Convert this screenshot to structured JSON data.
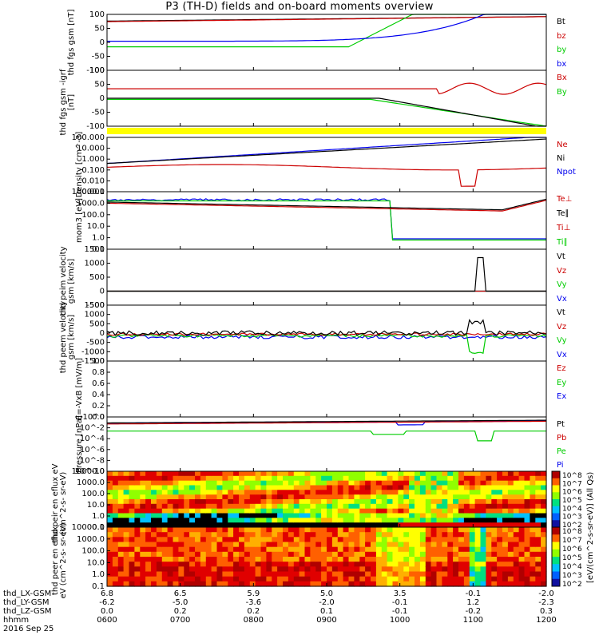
{
  "title": "P3 (TH-D) fields and on-board moments overview",
  "colors": {
    "black": "#000000",
    "red": "#cc0000",
    "green": "#00cc00",
    "blue": "#0000ee",
    "yellow": "#ffff00"
  },
  "chart_data": [
    {
      "type": "line",
      "panel": "fgs_gsm",
      "ylabel": [
        "thd",
        "fgs",
        "gsm",
        "[nT]"
      ],
      "ylim": [
        -100,
        100
      ],
      "yticks": [
        "100",
        "50",
        "0",
        "-50",
        "-100"
      ],
      "series": [
        {
          "name": "Bt",
          "color": "black"
        },
        {
          "name": "bz",
          "color": "red"
        },
        {
          "name": "by",
          "color": "green"
        },
        {
          "name": "bx",
          "color": "blue"
        }
      ]
    },
    {
      "type": "line",
      "panel": "fgs_gsm_dipole",
      "ylabel": [
        "thd",
        "fgs",
        "gsm",
        "-igrf",
        "[nT]"
      ],
      "ylim": [
        -125,
        125
      ],
      "yticks": [
        "100",
        "50",
        "0",
        "-50",
        "-100"
      ],
      "series": [
        {
          "name": "Bx",
          "color": "red"
        },
        {
          "name": "By",
          "color": "green"
        }
      ]
    },
    {
      "type": "line",
      "panel": "density",
      "ylabel": [
        "Density",
        "[cm^-3]"
      ],
      "ylim": [
        0.001,
        1000
      ],
      "log": true,
      "yticks": [
        "100.000",
        "10.000",
        "1.000",
        "0.100",
        "0.010",
        "0.001"
      ],
      "series": [
        {
          "name": "Ne",
          "color": "red"
        },
        {
          "name": "Ni",
          "color": "black"
        },
        {
          "name": "Npot",
          "color": "blue"
        }
      ]
    },
    {
      "type": "line",
      "panel": "temperature",
      "ylabel": [
        "mom3",
        "[eV]"
      ],
      "ylim": [
        0.1,
        10000
      ],
      "log": true,
      "yticks": [
        "10000.0",
        "1000.0",
        "100.0",
        "10.0",
        "1.0",
        "0.1"
      ],
      "series": [
        {
          "name": "Te⊥",
          "color": "red"
        },
        {
          "name": "Te∥",
          "color": "black"
        },
        {
          "name": "Ti⊥",
          "color": "red"
        },
        {
          "name": "Ti∥",
          "color": "green"
        }
      ]
    },
    {
      "type": "line",
      "panel": "peim_velocity",
      "ylabel": [
        "thd",
        "peim",
        "velocity",
        "gsm",
        "[km/s]"
      ],
      "ylim": [
        -500,
        1500
      ],
      "yticks": [
        "1500",
        "1000",
        "500",
        "0",
        "-500"
      ],
      "series": [
        {
          "name": "Vt",
          "color": "black"
        },
        {
          "name": "Vz",
          "color": "red"
        },
        {
          "name": "Vy",
          "color": "green"
        },
        {
          "name": "Vx",
          "color": "blue"
        }
      ]
    },
    {
      "type": "line",
      "panel": "peem_velocity",
      "ylabel": [
        "thd",
        "peem",
        "velocity",
        "gsm",
        "[km/s]"
      ],
      "ylim": [
        -1500,
        1500
      ],
      "yticks": [
        "1500",
        "1000",
        "500",
        "0",
        "-500",
        "-1000",
        "-1500"
      ],
      "series": [
        {
          "name": "Vt",
          "color": "black"
        },
        {
          "name": "Vz",
          "color": "red"
        },
        {
          "name": "Vy",
          "color": "green"
        },
        {
          "name": "Vx",
          "color": "blue"
        }
      ]
    },
    {
      "type": "line",
      "panel": "e_vxb",
      "ylabel": [
        "E=-VxB",
        "[mV/m]"
      ],
      "ylim": [
        0,
        1
      ],
      "yticks": [
        "1.0",
        "0.8",
        "0.6",
        "0.4",
        "0.2",
        "0.0"
      ],
      "series": [
        {
          "name": "Ez",
          "color": "red"
        },
        {
          "name": "Ey",
          "color": "green"
        },
        {
          "name": "Ex",
          "color": "blue"
        }
      ]
    },
    {
      "type": "line",
      "panel": "pressure",
      "ylabel": [
        "Pressure",
        "[nPa]"
      ],
      "ylim": [
        1e-10,
        10
      ],
      "log": true,
      "yticks": [
        "10^0",
        "10^-2",
        "10^-4",
        "10^-6",
        "10^-8",
        "10^-10"
      ],
      "series": [
        {
          "name": "Pt",
          "color": "black"
        },
        {
          "name": "Pb",
          "color": "red"
        },
        {
          "name": "Pe",
          "color": "green"
        },
        {
          "name": "Pi",
          "color": "blue"
        }
      ]
    },
    {
      "type": "heatmap",
      "panel": "peir_spectrogram",
      "ylabel": [
        "thd",
        "peir",
        "en",
        "eflux",
        "eV",
        "(cm^2-s-",
        "sr-eV)"
      ],
      "log": true,
      "yticks": [
        "10000.0",
        "1000.0",
        "100.0",
        "10.0",
        "1.0",
        "0.1"
      ]
    },
    {
      "type": "heatmap",
      "panel": "peer_spectrogram",
      "ylabel": [
        "thd",
        "peer",
        "en",
        "eflux",
        "eV",
        "(cm^2-s-",
        "sr-eV)"
      ],
      "log": true,
      "yticks": [
        "10000.0",
        "1000.0",
        "100.0",
        "10.0",
        "1.0",
        "0.1"
      ]
    }
  ],
  "colorbar": {
    "label": "[eV/(cm^2-s-sr-eV)] (All Qs)",
    "ticks": [
      "10^8",
      "10^7",
      "10^6",
      "10^5",
      "10^4",
      "10^3",
      "10^2"
    ]
  },
  "x_axis": {
    "rows": [
      {
        "label": "thd_LX-GSM",
        "values": [
          "6.8",
          "6.5",
          "5.9",
          "5.0",
          "3.5",
          "-0.1",
          "-2.0"
        ]
      },
      {
        "label": "thd_LY-GSM",
        "values": [
          "-6.2",
          "-5.0",
          "-3.6",
          "-2.0",
          "-0.1",
          "1.2",
          "-2.3"
        ]
      },
      {
        "label": "thd_LZ-GSM",
        "values": [
          "0.0",
          "0.2",
          "0.2",
          "0.1",
          "-0.1",
          "-0.2",
          "0.3"
        ]
      },
      {
        "label": "hhmm",
        "values": [
          "0600",
          "0700",
          "0800",
          "0900",
          "1000",
          "1100",
          "1200"
        ]
      }
    ],
    "date": "2016 Sep 25"
  }
}
